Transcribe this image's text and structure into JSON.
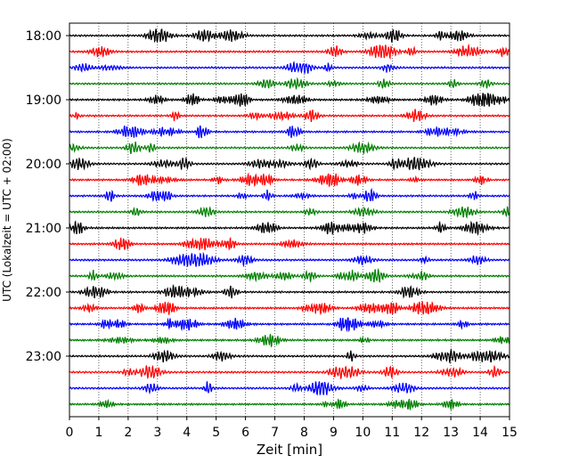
{
  "chart_data": {
    "type": "line",
    "title": "",
    "xlabel": "Zeit  [min]",
    "ylabel": "UTC (Lokalzeit = UTC + 02:00)",
    "xlim": [
      0,
      15
    ],
    "x_ticks": [
      0,
      1,
      2,
      3,
      4,
      5,
      6,
      7,
      8,
      9,
      10,
      11,
      12,
      13,
      14,
      15
    ],
    "y_ticks": [
      "18:00",
      "19:00",
      "20:00",
      "21:00",
      "22:00",
      "23:00"
    ],
    "trace_interval_minutes": 15,
    "first_trace_utc": "18:00",
    "trace_count": 24,
    "trace_colors": [
      "#000000",
      "#ff0000",
      "#0000ff",
      "#008000"
    ],
    "grid": "vertical-dotted",
    "legend": "none"
  }
}
